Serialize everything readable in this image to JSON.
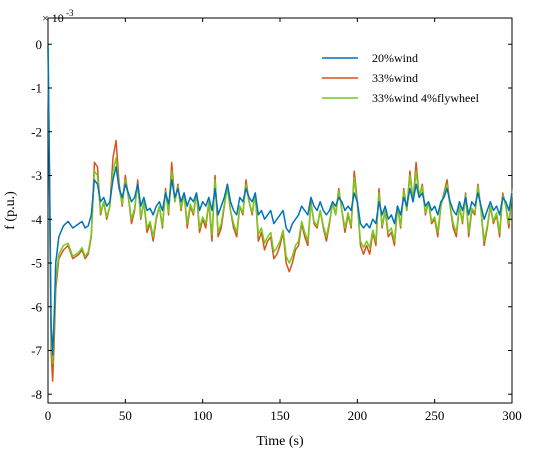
{
  "chart_data": {
    "type": "line",
    "xlabel": "Time  (s)",
    "ylabel": "f  (p.u.)",
    "y_exponent_label": "× 10",
    "y_exponent_power": "-3",
    "xlim": [
      0,
      300
    ],
    "ylim": [
      -8.2,
      0.6
    ],
    "x_scale_note": "y values in units of 10^-3",
    "xticks": [
      0,
      50,
      100,
      150,
      200,
      250,
      300
    ],
    "yticks": [
      0,
      -1,
      -2,
      -3,
      -4,
      -5,
      -6,
      -7,
      -8
    ],
    "grid": false,
    "legend_position": "top-right",
    "series": [
      {
        "name": "20%wind",
        "color": "#0072BD",
        "x": [
          0,
          1,
          2,
          3,
          4,
          5,
          7,
          10,
          13,
          16,
          20,
          22,
          24,
          26,
          28,
          30,
          32,
          34,
          36,
          38,
          40,
          42,
          44,
          46,
          48,
          50,
          52,
          54,
          56,
          58,
          60,
          62,
          64,
          66,
          68,
          70,
          72,
          74,
          76,
          78,
          80,
          82,
          84,
          86,
          88,
          90,
          92,
          94,
          96,
          98,
          100,
          102,
          104,
          106,
          108,
          110,
          112,
          114,
          116,
          118,
          120,
          122,
          124,
          126,
          128,
          130,
          132,
          134,
          136,
          138,
          140,
          142,
          144,
          146,
          148,
          150,
          152,
          154,
          156,
          158,
          160,
          162,
          164,
          166,
          168,
          170,
          172,
          174,
          176,
          178,
          180,
          182,
          184,
          186,
          188,
          190,
          192,
          194,
          196,
          198,
          200,
          202,
          204,
          206,
          208,
          210,
          212,
          214,
          216,
          218,
          220,
          222,
          224,
          226,
          228,
          230,
          232,
          234,
          236,
          238,
          240,
          242,
          244,
          246,
          248,
          250,
          252,
          254,
          256,
          258,
          260,
          262,
          264,
          266,
          268,
          270,
          272,
          274,
          276,
          278,
          280,
          282,
          284,
          286,
          288,
          290,
          292,
          294,
          296,
          298,
          300
        ],
        "y": [
          0,
          -3.0,
          -6.4,
          -7.1,
          -6.2,
          -5.0,
          -4.4,
          -4.15,
          -4.05,
          -4.2,
          -4.1,
          -4.05,
          -4.2,
          -4.15,
          -3.9,
          -3.1,
          -3.2,
          -3.6,
          -3.5,
          -3.7,
          -3.6,
          -3.1,
          -2.8,
          -3.3,
          -3.5,
          -3.2,
          -3.4,
          -3.6,
          -3.5,
          -3.2,
          -3.7,
          -3.5,
          -3.8,
          -3.75,
          -3.9,
          -3.7,
          -3.6,
          -3.8,
          -3.4,
          -3.65,
          -3.1,
          -3.5,
          -3.3,
          -3.6,
          -3.4,
          -3.7,
          -3.5,
          -3.6,
          -3.4,
          -3.8,
          -3.6,
          -3.7,
          -3.5,
          -3.8,
          -3.3,
          -3.9,
          -3.7,
          -3.5,
          -3.2,
          -3.6,
          -3.8,
          -3.9,
          -3.5,
          -3.6,
          -3.3,
          -3.5,
          -3.6,
          -3.4,
          -3.9,
          -3.8,
          -4.0,
          -3.9,
          -3.8,
          -4.1,
          -4.0,
          -3.9,
          -3.8,
          -4.2,
          -4.3,
          -4.1,
          -4.0,
          -3.9,
          -3.7,
          -3.8,
          -3.9,
          -3.5,
          -3.7,
          -3.8,
          -3.6,
          -3.8,
          -3.9,
          -3.8,
          -3.6,
          -3.7,
          -3.5,
          -3.6,
          -3.8,
          -3.7,
          -3.8,
          -3.4,
          -3.6,
          -4.1,
          -4.2,
          -4.1,
          -4.2,
          -4.0,
          -4.1,
          -3.6,
          -3.9,
          -3.7,
          -4.0,
          -3.9,
          -4.1,
          -3.7,
          -3.9,
          -3.5,
          -3.7,
          -3.3,
          -3.6,
          -3.2,
          -3.5,
          -3.4,
          -3.7,
          -3.6,
          -3.8,
          -3.7,
          -3.9,
          -3.6,
          -3.5,
          -3.3,
          -3.6,
          -3.8,
          -3.9,
          -3.6,
          -3.8,
          -3.5,
          -3.9,
          -3.6,
          -3.7,
          -3.4,
          -3.7,
          -4.0,
          -3.8,
          -3.6,
          -3.8,
          -3.7,
          -3.9,
          -3.5,
          -3.6,
          -3.8,
          -3.4
        ]
      },
      {
        "name": "33%wind",
        "color": "#D95319",
        "x": [
          0,
          1,
          2,
          3,
          4,
          5,
          7,
          10,
          13,
          16,
          20,
          22,
          24,
          26,
          28,
          30,
          32,
          34,
          36,
          38,
          40,
          42,
          44,
          46,
          48,
          50,
          52,
          54,
          56,
          58,
          60,
          62,
          64,
          66,
          68,
          70,
          72,
          74,
          76,
          78,
          80,
          82,
          84,
          86,
          88,
          90,
          92,
          94,
          96,
          98,
          100,
          102,
          104,
          106,
          108,
          110,
          112,
          114,
          116,
          118,
          120,
          122,
          124,
          126,
          128,
          130,
          132,
          134,
          136,
          138,
          140,
          142,
          144,
          146,
          148,
          150,
          152,
          154,
          156,
          158,
          160,
          162,
          164,
          166,
          168,
          170,
          172,
          174,
          176,
          178,
          180,
          182,
          184,
          186,
          188,
          190,
          192,
          194,
          196,
          198,
          200,
          202,
          204,
          206,
          208,
          210,
          212,
          214,
          216,
          218,
          220,
          222,
          224,
          226,
          228,
          230,
          232,
          234,
          236,
          238,
          240,
          242,
          244,
          246,
          248,
          250,
          252,
          254,
          256,
          258,
          260,
          262,
          264,
          266,
          268,
          270,
          272,
          274,
          276,
          278,
          280,
          282,
          284,
          286,
          288,
          290,
          292,
          294,
          296,
          298,
          300
        ],
        "y": [
          0,
          -3.3,
          -7.0,
          -7.7,
          -6.8,
          -5.6,
          -4.9,
          -4.7,
          -4.6,
          -4.9,
          -4.8,
          -4.7,
          -4.9,
          -4.8,
          -4.4,
          -2.7,
          -2.8,
          -3.9,
          -3.6,
          -4.0,
          -3.7,
          -2.6,
          -2.2,
          -3.2,
          -3.7,
          -3.0,
          -3.5,
          -4.1,
          -3.8,
          -3.1,
          -4.0,
          -3.6,
          -4.3,
          -4.1,
          -4.5,
          -4.0,
          -3.7,
          -4.2,
          -3.3,
          -3.9,
          -2.7,
          -3.6,
          -3.2,
          -3.8,
          -3.4,
          -4.2,
          -3.7,
          -3.9,
          -3.4,
          -4.3,
          -4.0,
          -4.2,
          -3.6,
          -4.5,
          -3.0,
          -4.4,
          -4.2,
          -3.7,
          -3.2,
          -3.8,
          -4.2,
          -4.4,
          -3.7,
          -3.9,
          -3.1,
          -3.6,
          -3.9,
          -3.4,
          -4.5,
          -4.3,
          -4.7,
          -4.5,
          -4.4,
          -4.9,
          -4.8,
          -4.6,
          -4.3,
          -5.0,
          -5.2,
          -5.0,
          -4.7,
          -4.6,
          -4.1,
          -4.4,
          -4.6,
          -3.6,
          -4.1,
          -4.2,
          -3.8,
          -4.2,
          -4.5,
          -4.1,
          -3.6,
          -3.9,
          -3.3,
          -3.8,
          -4.3,
          -3.9,
          -4.2,
          -2.9,
          -3.6,
          -4.6,
          -4.8,
          -4.6,
          -4.8,
          -4.3,
          -4.6,
          -3.3,
          -4.2,
          -3.8,
          -4.4,
          -4.3,
          -4.6,
          -3.7,
          -4.2,
          -3.3,
          -3.8,
          -2.9,
          -3.6,
          -2.7,
          -3.5,
          -3.2,
          -3.9,
          -3.6,
          -4.1,
          -4.0,
          -4.4,
          -3.7,
          -3.4,
          -3.1,
          -3.7,
          -4.2,
          -4.4,
          -3.7,
          -4.1,
          -3.4,
          -4.4,
          -3.8,
          -3.9,
          -3.2,
          -3.8,
          -4.6,
          -4.2,
          -3.7,
          -4.1,
          -3.9,
          -4.4,
          -3.4,
          -3.7,
          -4.2,
          -3.3
        ]
      },
      {
        "name": "33%wind  4%flywheel",
        "color": "#77C81F",
        "x": [
          0,
          1,
          2,
          3,
          4,
          5,
          7,
          10,
          13,
          16,
          20,
          22,
          24,
          26,
          28,
          30,
          32,
          34,
          36,
          38,
          40,
          42,
          44,
          46,
          48,
          50,
          52,
          54,
          56,
          58,
          60,
          62,
          64,
          66,
          68,
          70,
          72,
          74,
          76,
          78,
          80,
          82,
          84,
          86,
          88,
          90,
          92,
          94,
          96,
          98,
          100,
          102,
          104,
          106,
          108,
          110,
          112,
          114,
          116,
          118,
          120,
          122,
          124,
          126,
          128,
          130,
          132,
          134,
          136,
          138,
          140,
          142,
          144,
          146,
          148,
          150,
          152,
          154,
          156,
          158,
          160,
          162,
          164,
          166,
          168,
          170,
          172,
          174,
          176,
          178,
          180,
          182,
          184,
          186,
          188,
          190,
          192,
          194,
          196,
          198,
          200,
          202,
          204,
          206,
          208,
          210,
          212,
          214,
          216,
          218,
          220,
          222,
          224,
          226,
          228,
          230,
          232,
          234,
          236,
          238,
          240,
          242,
          244,
          246,
          248,
          250,
          252,
          254,
          256,
          258,
          260,
          262,
          264,
          266,
          268,
          270,
          272,
          274,
          276,
          278,
          280,
          282,
          284,
          286,
          288,
          290,
          292,
          294,
          296,
          298,
          300
        ],
        "y": [
          0,
          -3.2,
          -6.8,
          -7.3,
          -6.5,
          -5.4,
          -4.8,
          -4.6,
          -4.55,
          -4.85,
          -4.75,
          -4.65,
          -4.85,
          -4.75,
          -4.35,
          -2.9,
          -3.0,
          -3.85,
          -3.6,
          -3.95,
          -3.7,
          -2.9,
          -2.6,
          -3.3,
          -3.65,
          -3.1,
          -3.5,
          -4.0,
          -3.75,
          -3.2,
          -3.95,
          -3.6,
          -4.2,
          -4.05,
          -4.4,
          -3.95,
          -3.7,
          -4.15,
          -3.35,
          -3.85,
          -2.9,
          -3.6,
          -3.25,
          -3.75,
          -3.4,
          -4.1,
          -3.65,
          -3.85,
          -3.4,
          -4.2,
          -3.95,
          -4.1,
          -3.6,
          -4.35,
          -3.1,
          -4.3,
          -4.1,
          -3.65,
          -3.3,
          -3.8,
          -4.1,
          -4.3,
          -3.7,
          -3.85,
          -3.2,
          -3.6,
          -3.85,
          -3.45,
          -4.35,
          -4.2,
          -4.55,
          -4.4,
          -4.3,
          -4.75,
          -4.65,
          -4.5,
          -4.25,
          -4.85,
          -5.0,
          -4.85,
          -4.6,
          -4.5,
          -4.05,
          -4.3,
          -4.5,
          -3.65,
          -4.05,
          -4.15,
          -3.8,
          -4.15,
          -4.4,
          -4.05,
          -3.65,
          -3.9,
          -3.35,
          -3.8,
          -4.2,
          -3.85,
          -4.15,
          -3.05,
          -3.65,
          -4.5,
          -4.65,
          -4.5,
          -4.65,
          -4.25,
          -4.5,
          -3.4,
          -4.15,
          -3.8,
          -4.3,
          -4.2,
          -4.5,
          -3.7,
          -4.15,
          -3.35,
          -3.8,
          -3.0,
          -3.6,
          -2.9,
          -3.5,
          -3.25,
          -3.85,
          -3.6,
          -4.05,
          -3.95,
          -4.3,
          -3.7,
          -3.45,
          -3.2,
          -3.7,
          -4.1,
          -4.3,
          -3.7,
          -4.05,
          -3.45,
          -4.3,
          -3.75,
          -3.85,
          -3.25,
          -3.8,
          -4.5,
          -4.15,
          -3.7,
          -4.05,
          -3.85,
          -4.3,
          -3.45,
          -3.7,
          -4.1,
          -3.35
        ]
      }
    ]
  }
}
